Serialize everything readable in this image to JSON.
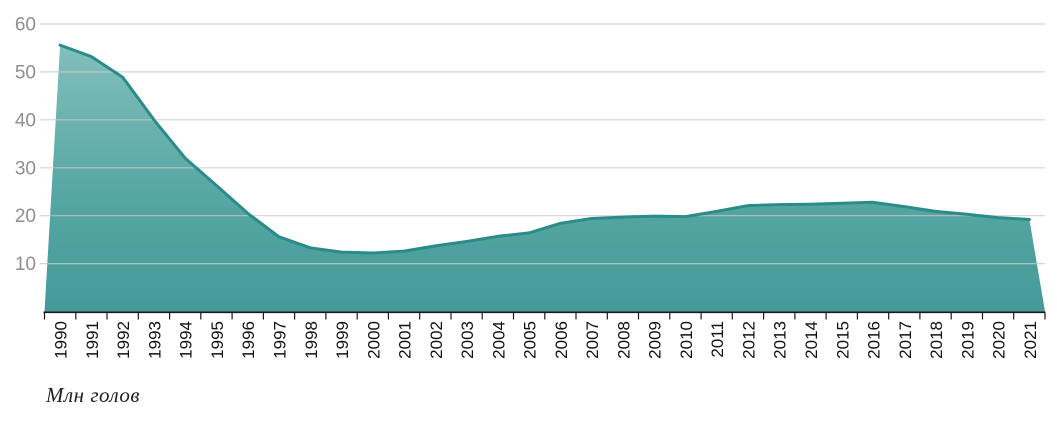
{
  "chart_data": {
    "type": "area",
    "title": "",
    "xlabel": "",
    "ylabel": "Млн голов",
    "categories": [
      "1990",
      "1991",
      "1992",
      "1993",
      "1994",
      "1995",
      "1996",
      "1997",
      "1998",
      "1999",
      "2000",
      "2001",
      "2002",
      "2003",
      "2004",
      "2005",
      "2006",
      "2007",
      "2008",
      "2009",
      "2010",
      "2011",
      "2012",
      "2013",
      "2014",
      "2015",
      "2016",
      "2017",
      "2018",
      "2019",
      "2020",
      "2021"
    ],
    "values": [
      55.6,
      53.2,
      48.9,
      40.0,
      32.0,
      26.3,
      20.5,
      15.6,
      13.3,
      12.4,
      12.2,
      12.6,
      13.7,
      14.6,
      15.7,
      16.4,
      18.4,
      19.4,
      19.7,
      19.9,
      19.8,
      20.9,
      22.1,
      22.3,
      22.4,
      22.6,
      22.8,
      21.9,
      20.9,
      20.3,
      19.6,
      19.2
    ],
    "y_ticks": [
      10,
      20,
      30,
      40,
      50,
      60
    ],
    "ylim": [
      0,
      60
    ],
    "grid": true,
    "legend_position": "none",
    "colors": {
      "area_top": "#82bfbc",
      "area_mid": "#57a7a4",
      "area_bottom": "#459a98",
      "line": "#2b8b89",
      "gridline": "#c9c9c9",
      "axis": "#1a1a1a",
      "y_tick_label": "#8f8f8f",
      "x_tick_label": "#111111"
    }
  },
  "caption": "Млн голов"
}
